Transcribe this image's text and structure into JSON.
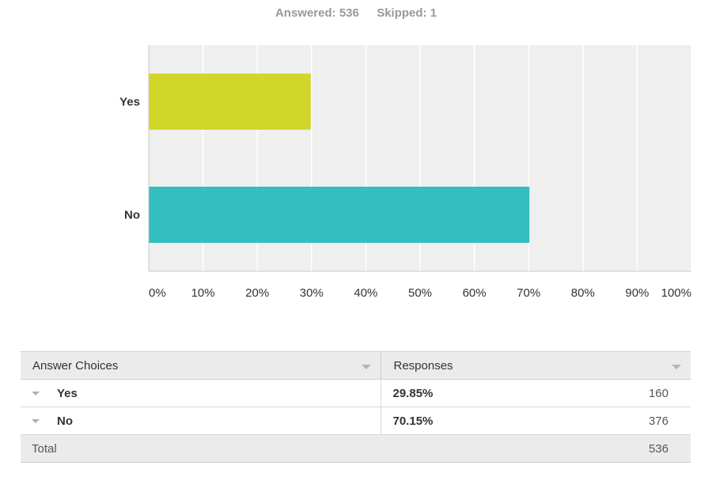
{
  "summary": {
    "answered_label": "Answered:",
    "answered_value": "536",
    "skipped_label": "Skipped:",
    "skipped_value": "1"
  },
  "chart_data": {
    "type": "bar",
    "orientation": "horizontal",
    "categories": [
      "Yes",
      "No"
    ],
    "values": [
      29.85,
      70.15
    ],
    "colors": [
      "#d1d628",
      "#33bebf"
    ],
    "xlim": [
      0,
      100
    ],
    "xticks": [
      "0%",
      "10%",
      "20%",
      "30%",
      "40%",
      "50%",
      "60%",
      "70%",
      "80%",
      "90%",
      "100%"
    ],
    "grid": true,
    "title": "",
    "xlabel": "",
    "ylabel": ""
  },
  "table": {
    "headers": {
      "choices": "Answer Choices",
      "responses": "Responses"
    },
    "rows": [
      {
        "choice": "Yes",
        "percent": "29.85%",
        "count": "160"
      },
      {
        "choice": "No",
        "percent": "70.15%",
        "count": "376"
      }
    ],
    "total": {
      "label": "Total",
      "count": "536"
    }
  }
}
